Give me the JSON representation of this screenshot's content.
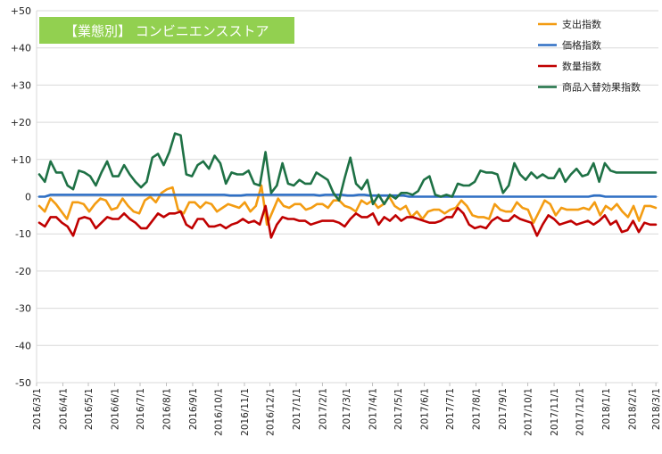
{
  "chart_data": {
    "type": "line",
    "title": "【業態別】 コンビニエンスストア",
    "title_bg": "#92D050",
    "ylim": [
      -50,
      50
    ],
    "yticks": [
      {
        "value": 50,
        "label": "+50"
      },
      {
        "value": 40,
        "label": "+40"
      },
      {
        "value": 30,
        "label": "+30"
      },
      {
        "value": 20,
        "label": "+20"
      },
      {
        "value": 10,
        "label": "+10"
      },
      {
        "value": 0,
        "label": "0"
      },
      {
        "value": -10,
        "label": "-10"
      },
      {
        "value": -20,
        "label": "-20"
      },
      {
        "value": -30,
        "label": "-30"
      },
      {
        "value": -40,
        "label": "-40"
      },
      {
        "value": -50,
        "label": "-50"
      }
    ],
    "x_ticks": [
      "2016/3/1",
      "2016/4/1",
      "2016/5/1",
      "2016/6/1",
      "2016/7/1",
      "2016/8/1",
      "2016/9/1",
      "2016/10/1",
      "2016/11/1",
      "2016/12/1",
      "2017/1/1",
      "2017/2/1",
      "2017/3/1",
      "2017/4/1",
      "2017/5/1",
      "2017/6/1",
      "2017/7/1",
      "2017/8/1",
      "2017/9/1",
      "2017/10/1",
      "2017/11/1",
      "2017/12/1",
      "2018/1/1",
      "2018/2/1",
      "2018/3/1"
    ],
    "x_start": "2016-03-01",
    "x_end": "2018-03-04",
    "grid": "horizontal",
    "legend_position": "top-right",
    "series": [
      {
        "name": "支出指数",
        "color": "#F39C12",
        "values": [
          -2.5,
          -4,
          -0.5,
          -2,
          -4,
          -6,
          -1.5,
          -1.5,
          -2,
          -4,
          -2,
          -0.5,
          -1,
          -3.5,
          -3,
          -0.5,
          -2.5,
          -4,
          -4.5,
          -1,
          0,
          -1.5,
          1,
          2,
          2.5,
          -3.5,
          -4.5,
          -1.5,
          -1.5,
          -3,
          -1.5,
          -2,
          -4,
          -3,
          -2,
          -2.5,
          -3,
          -1.5,
          -4,
          -2.5,
          3,
          -7.5,
          -4,
          -0.5,
          -2.5,
          -3,
          -2,
          -2,
          -3.5,
          -3,
          -2,
          -2,
          -3,
          -1,
          -1,
          -2.5,
          -3,
          -4,
          -1,
          -2,
          -1,
          -3,
          -2,
          0,
          -2.5,
          -3.5,
          -2.5,
          -5.5,
          -4,
          -6,
          -4,
          -3.5,
          -3.5,
          -4.5,
          -3.5,
          -3,
          -1,
          -2.5,
          -5,
          -5.5,
          -5.5,
          -6,
          -2,
          -3.5,
          -4,
          -4,
          -1.5,
          -3,
          -3.5,
          -7,
          -4,
          -1,
          -2,
          -5,
          -3,
          -3.5,
          -3.5,
          -3.5,
          -3,
          -3.5,
          -1.5,
          -5,
          -2.5,
          -3.5,
          -2,
          -4,
          -5.5,
          -2.5,
          -6.5,
          -2.5,
          -2.5,
          -3
        ]
      },
      {
        "name": "価格指数",
        "color": "#2E6FC4",
        "values": [
          0,
          0,
          0.5,
          0.5,
          0.5,
          0.5,
          0.5,
          0.5,
          0.5,
          0.5,
          0.5,
          0.5,
          0.5,
          0.5,
          0.5,
          0.5,
          0.5,
          0.5,
          0.5,
          0.5,
          0.5,
          0.5,
          0.5,
          0.5,
          0.5,
          0.5,
          0.5,
          0.5,
          0.5,
          0.5,
          0.5,
          0.5,
          0.5,
          0.5,
          0.3,
          0.3,
          0.3,
          0.5,
          0.5,
          0.5,
          0.5,
          0.5,
          0.5,
          0.5,
          0.5,
          0.5,
          0.5,
          0.5,
          0.5,
          0.5,
          0.3,
          0.5,
          0.5,
          0.5,
          0.5,
          0.3,
          0.3,
          0.5,
          0.5,
          0.3,
          0.3,
          0.3,
          0.3,
          0.3,
          0.3,
          0.3,
          0,
          0,
          0,
          0,
          0,
          0,
          0,
          0,
          0,
          0,
          0,
          0,
          0,
          0,
          0,
          0,
          0,
          0,
          0,
          0,
          0,
          0,
          0,
          0,
          0,
          0,
          0,
          0,
          0,
          0,
          0,
          0,
          0,
          0.3,
          0.3,
          0,
          0,
          0,
          0,
          0,
          0,
          0,
          0,
          0,
          0
        ]
      },
      {
        "name": "数量指数",
        "color": "#C00000",
        "values": [
          -7,
          -8,
          -5.5,
          -5.5,
          -7,
          -8,
          -10.5,
          -6,
          -5.5,
          -6,
          -8.5,
          -7,
          -5.5,
          -6,
          -6,
          -4.5,
          -6,
          -7,
          -8.5,
          -8.5,
          -6.5,
          -4.5,
          -5.5,
          -4.5,
          -4.5,
          -4,
          -7.5,
          -8.5,
          -6,
          -6,
          -8,
          -8,
          -7.5,
          -8.5,
          -7.5,
          -7,
          -6,
          -7,
          -6.5,
          -7.5,
          -2.5,
          -11,
          -7.5,
          -5.5,
          -6,
          -6,
          -6.5,
          -6.5,
          -7.5,
          -7,
          -6.5,
          -6.5,
          -6.5,
          -7,
          -8,
          -6,
          -4.5,
          -5.5,
          -5.5,
          -4.5,
          -7.5,
          -5.5,
          -6.5,
          -5,
          -6.5,
          -5.5,
          -5.5,
          -6,
          -6.5,
          -7,
          -7,
          -6.5,
          -5.5,
          -5.5,
          -3,
          -4.5,
          -7.5,
          -8.5,
          -8,
          -8.5,
          -6.5,
          -5.5,
          -6.5,
          -6.5,
          -5,
          -6,
          -6.5,
          -7,
          -10.5,
          -7.5,
          -5,
          -6,
          -7.5,
          -7,
          -6.5,
          -7.5,
          -7,
          -6.5,
          -7.5,
          -6.5,
          -5,
          -7.5,
          -6.5,
          -9.5,
          -9,
          -6.5,
          -9.5,
          -7,
          -7.5,
          -7.5
        ]
      },
      {
        "name": "商品入替効果指数",
        "color": "#1E7145",
        "values": [
          6,
          4,
          9.5,
          6.5,
          6.5,
          3,
          2,
          7,
          6.5,
          5.5,
          3,
          6.5,
          9.5,
          5.5,
          5.5,
          8.5,
          6,
          4,
          2.5,
          4,
          10.5,
          11.5,
          8.5,
          12,
          17,
          16.5,
          6,
          5.5,
          8.5,
          9.5,
          7.5,
          11,
          9,
          3.5,
          6.5,
          6,
          6,
          7,
          3.5,
          3,
          12,
          1,
          3,
          9,
          3.5,
          3,
          4.5,
          3.5,
          3.5,
          6.5,
          5.5,
          4.5,
          1,
          -1,
          5,
          10.5,
          3.5,
          2,
          4.5,
          -2,
          0.5,
          -2,
          0.5,
          -0.5,
          1,
          1,
          0.5,
          1.5,
          4.5,
          5.5,
          0.5,
          0,
          0.5,
          0,
          3.5,
          3,
          3,
          4,
          7,
          6.5,
          6.5,
          6,
          1,
          3,
          9,
          6,
          4.5,
          6.5,
          5,
          6,
          5,
          5,
          7.5,
          4,
          6,
          7.5,
          5.5,
          6,
          9,
          4,
          9,
          7,
          6.5,
          6.5,
          6.5,
          6.5,
          6.5,
          6.5,
          6.5,
          6.5
        ]
      }
    ]
  }
}
